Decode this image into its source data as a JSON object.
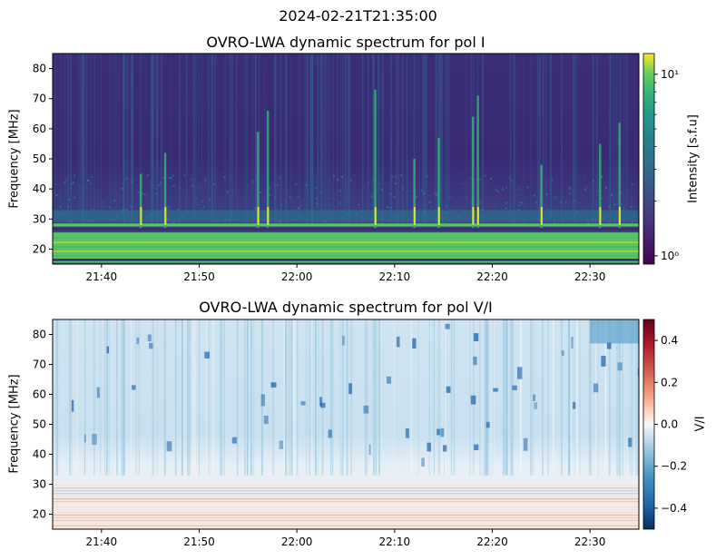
{
  "suptitle": "2024-02-21T21:35:00",
  "chart_data": [
    {
      "type": "heatmap",
      "title": "OVRO-LWA dynamic spectrum for pol I",
      "ylabel": "Frequency [MHz]",
      "xlabel": "",
      "x_ticks": [
        "21:40",
        "21:50",
        "22:00",
        "22:10",
        "22:20",
        "22:30"
      ],
      "x_range": [
        "21:35",
        "22:35"
      ],
      "y_ticks": [
        20,
        30,
        40,
        50,
        60,
        70,
        80
      ],
      "ylim": [
        15,
        85
      ],
      "colormap": "viridis",
      "colorbar": {
        "label": "Intensity [s.f.u]",
        "scale": "log",
        "range": [
          0.9,
          13
        ],
        "ticks": [
          {
            "value": 10,
            "label": "10¹"
          },
          {
            "value": 1,
            "label": "10⁰"
          }
        ],
        "minor_ticks": [
          2,
          3,
          4,
          5,
          6,
          7,
          8,
          9
        ]
      },
      "bright_bands_mhz": [
        [
          15.5,
          25.5
        ],
        [
          27.5,
          28.5
        ]
      ],
      "dark_bands_mhz": [
        [
          26,
          27.2
        ],
        [
          16,
          16.8
        ]
      ],
      "burst_times": [
        "21:44",
        "21:46:30",
        "21:56",
        "21:57",
        "22:08",
        "22:12",
        "22:14:30",
        "22:18",
        "22:18:30",
        "22:25",
        "22:31",
        "22:33"
      ]
    },
    {
      "type": "heatmap",
      "title": "OVRO-LWA dynamic spectrum for pol V/I",
      "ylabel": "Frequency [MHz]",
      "xlabel": "",
      "x_ticks": [
        "21:40",
        "21:50",
        "22:00",
        "22:10",
        "22:20",
        "22:30"
      ],
      "x_range": [
        "21:35",
        "22:35"
      ],
      "y_ticks": [
        20,
        30,
        40,
        50,
        60,
        70,
        80
      ],
      "ylim": [
        15,
        85
      ],
      "colormap": "RdBu_r",
      "colorbar": {
        "label": "V/I",
        "scale": "linear",
        "range": [
          -0.5,
          0.5
        ],
        "ticks": [
          0.4,
          0.2,
          0.0,
          -0.2,
          -0.4
        ],
        "tick_labels": [
          "0.4",
          "0.2",
          "0.0",
          "−0.2",
          "−0.4"
        ]
      }
    }
  ]
}
